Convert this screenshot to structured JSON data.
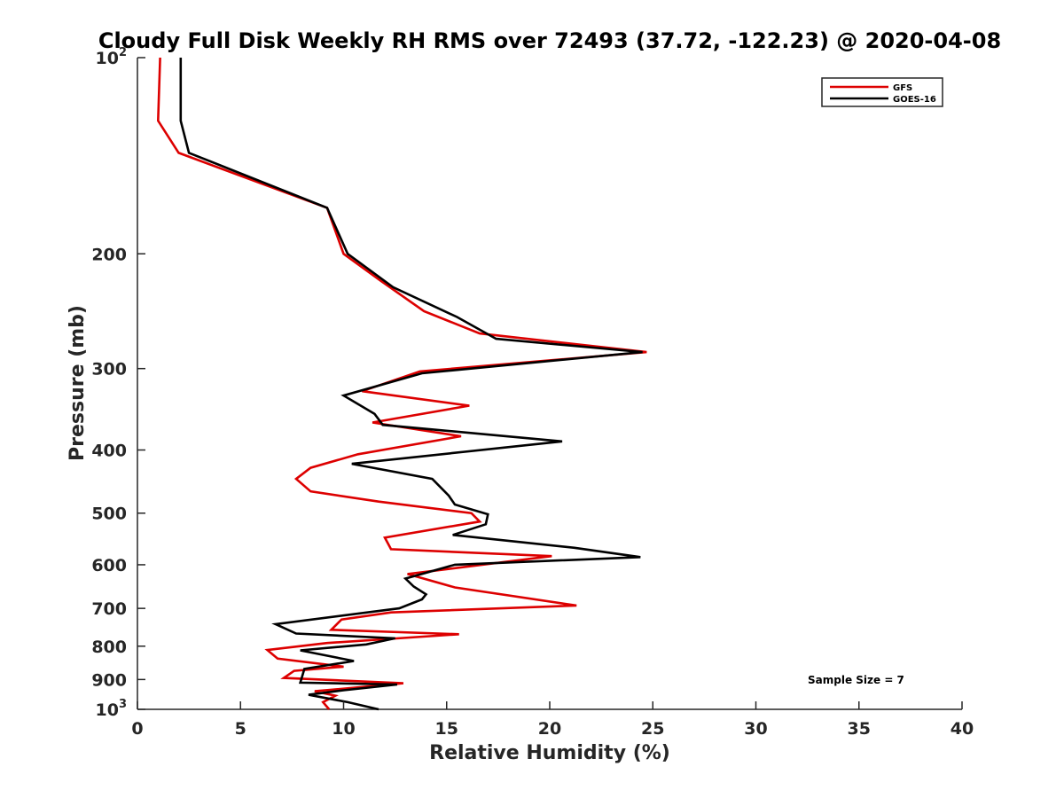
{
  "chart_data": {
    "type": "line",
    "title": "Cloudy Full Disk Weekly RH RMS over 72493 (37.72, -122.23) @ 2020-04-08",
    "xlabel": "Relative Humidity (%)",
    "ylabel": "Pressure (mb)",
    "xlim": [
      0,
      40
    ],
    "ylim": [
      100,
      1000
    ],
    "yscale": "log",
    "y_reversed": true,
    "x_ticks": [
      0,
      5,
      10,
      15,
      20,
      25,
      30,
      35,
      40
    ],
    "x_tick_labels": [
      "0",
      "5",
      "10",
      "15",
      "20",
      "25",
      "30",
      "35",
      "40"
    ],
    "y_ticks": [
      100,
      200,
      300,
      400,
      500,
      600,
      700,
      800,
      900,
      1000
    ],
    "y_tick_labels": [
      {
        "base": "10",
        "exp": "2"
      },
      {
        "base": "200"
      },
      {
        "base": "300"
      },
      {
        "base": "400"
      },
      {
        "base": "500"
      },
      {
        "base": "600"
      },
      {
        "base": "700"
      },
      {
        "base": "800"
      },
      {
        "base": "900"
      },
      {
        "base": "10",
        "exp": "3"
      }
    ],
    "grid": false,
    "legend_position": "top-right",
    "annotation": "Sample Size = 7",
    "series": [
      {
        "name": "GFS",
        "color": "#dd0000",
        "points": [
          [
            1.1,
            100
          ],
          [
            1.0,
            125
          ],
          [
            2.0,
            140
          ],
          [
            9.2,
            170
          ],
          [
            10.0,
            200
          ],
          [
            11.8,
            220
          ],
          [
            13.9,
            245
          ],
          [
            16.6,
            265
          ],
          [
            24.7,
            283
          ],
          [
            13.7,
            303
          ],
          [
            10.9,
            325
          ],
          [
            16.1,
            342
          ],
          [
            11.4,
            363
          ],
          [
            15.7,
            381
          ],
          [
            10.7,
            406
          ],
          [
            8.4,
            426
          ],
          [
            7.7,
            443
          ],
          [
            8.4,
            463
          ],
          [
            11.7,
            480
          ],
          [
            16.2,
            500
          ],
          [
            16.6,
            515
          ],
          [
            12.0,
            545
          ],
          [
            12.3,
            568
          ],
          [
            20.1,
            582
          ],
          [
            13.1,
            620
          ],
          [
            15.4,
            650
          ],
          [
            21.3,
            693
          ],
          [
            12.3,
            710
          ],
          [
            9.9,
            728
          ],
          [
            9.4,
            755
          ],
          [
            15.6,
            767
          ],
          [
            9.2,
            791
          ],
          [
            6.3,
            811
          ],
          [
            6.8,
            836
          ],
          [
            10.0,
            860
          ],
          [
            7.6,
            873
          ],
          [
            7.1,
            895
          ],
          [
            12.9,
            912
          ],
          [
            8.6,
            938
          ],
          [
            9.6,
            953
          ],
          [
            9.0,
            975
          ],
          [
            9.3,
            1000
          ]
        ]
      },
      {
        "name": "GOES-16",
        "color": "#000000",
        "points": [
          [
            2.1,
            100
          ],
          [
            2.1,
            125
          ],
          [
            2.5,
            140
          ],
          [
            9.2,
            170
          ],
          [
            10.2,
            200
          ],
          [
            12.4,
            225
          ],
          [
            15.5,
            250
          ],
          [
            17.4,
            270
          ],
          [
            24.5,
            283
          ],
          [
            13.8,
            305
          ],
          [
            10.0,
            330
          ],
          [
            11.5,
            352
          ],
          [
            11.9,
            366
          ],
          [
            20.6,
            388
          ],
          [
            10.4,
            420
          ],
          [
            14.3,
            443
          ],
          [
            15.1,
            470
          ],
          [
            15.4,
            485
          ],
          [
            17.0,
            502
          ],
          [
            16.9,
            520
          ],
          [
            15.3,
            540
          ],
          [
            21.2,
            565
          ],
          [
            24.4,
            584
          ],
          [
            15.4,
            600
          ],
          [
            13.0,
            630
          ],
          [
            13.4,
            648
          ],
          [
            14.0,
            666
          ],
          [
            13.8,
            678
          ],
          [
            12.7,
            700
          ],
          [
            6.7,
            740
          ],
          [
            7.7,
            765
          ],
          [
            12.5,
            778
          ],
          [
            11.1,
            795
          ],
          [
            7.9,
            812
          ],
          [
            10.5,
            843
          ],
          [
            8.1,
            867
          ],
          [
            7.9,
            910
          ],
          [
            12.6,
            916
          ],
          [
            10.0,
            935
          ],
          [
            8.3,
            950
          ],
          [
            10.2,
            975
          ],
          [
            11.7,
            1000
          ]
        ]
      }
    ]
  }
}
